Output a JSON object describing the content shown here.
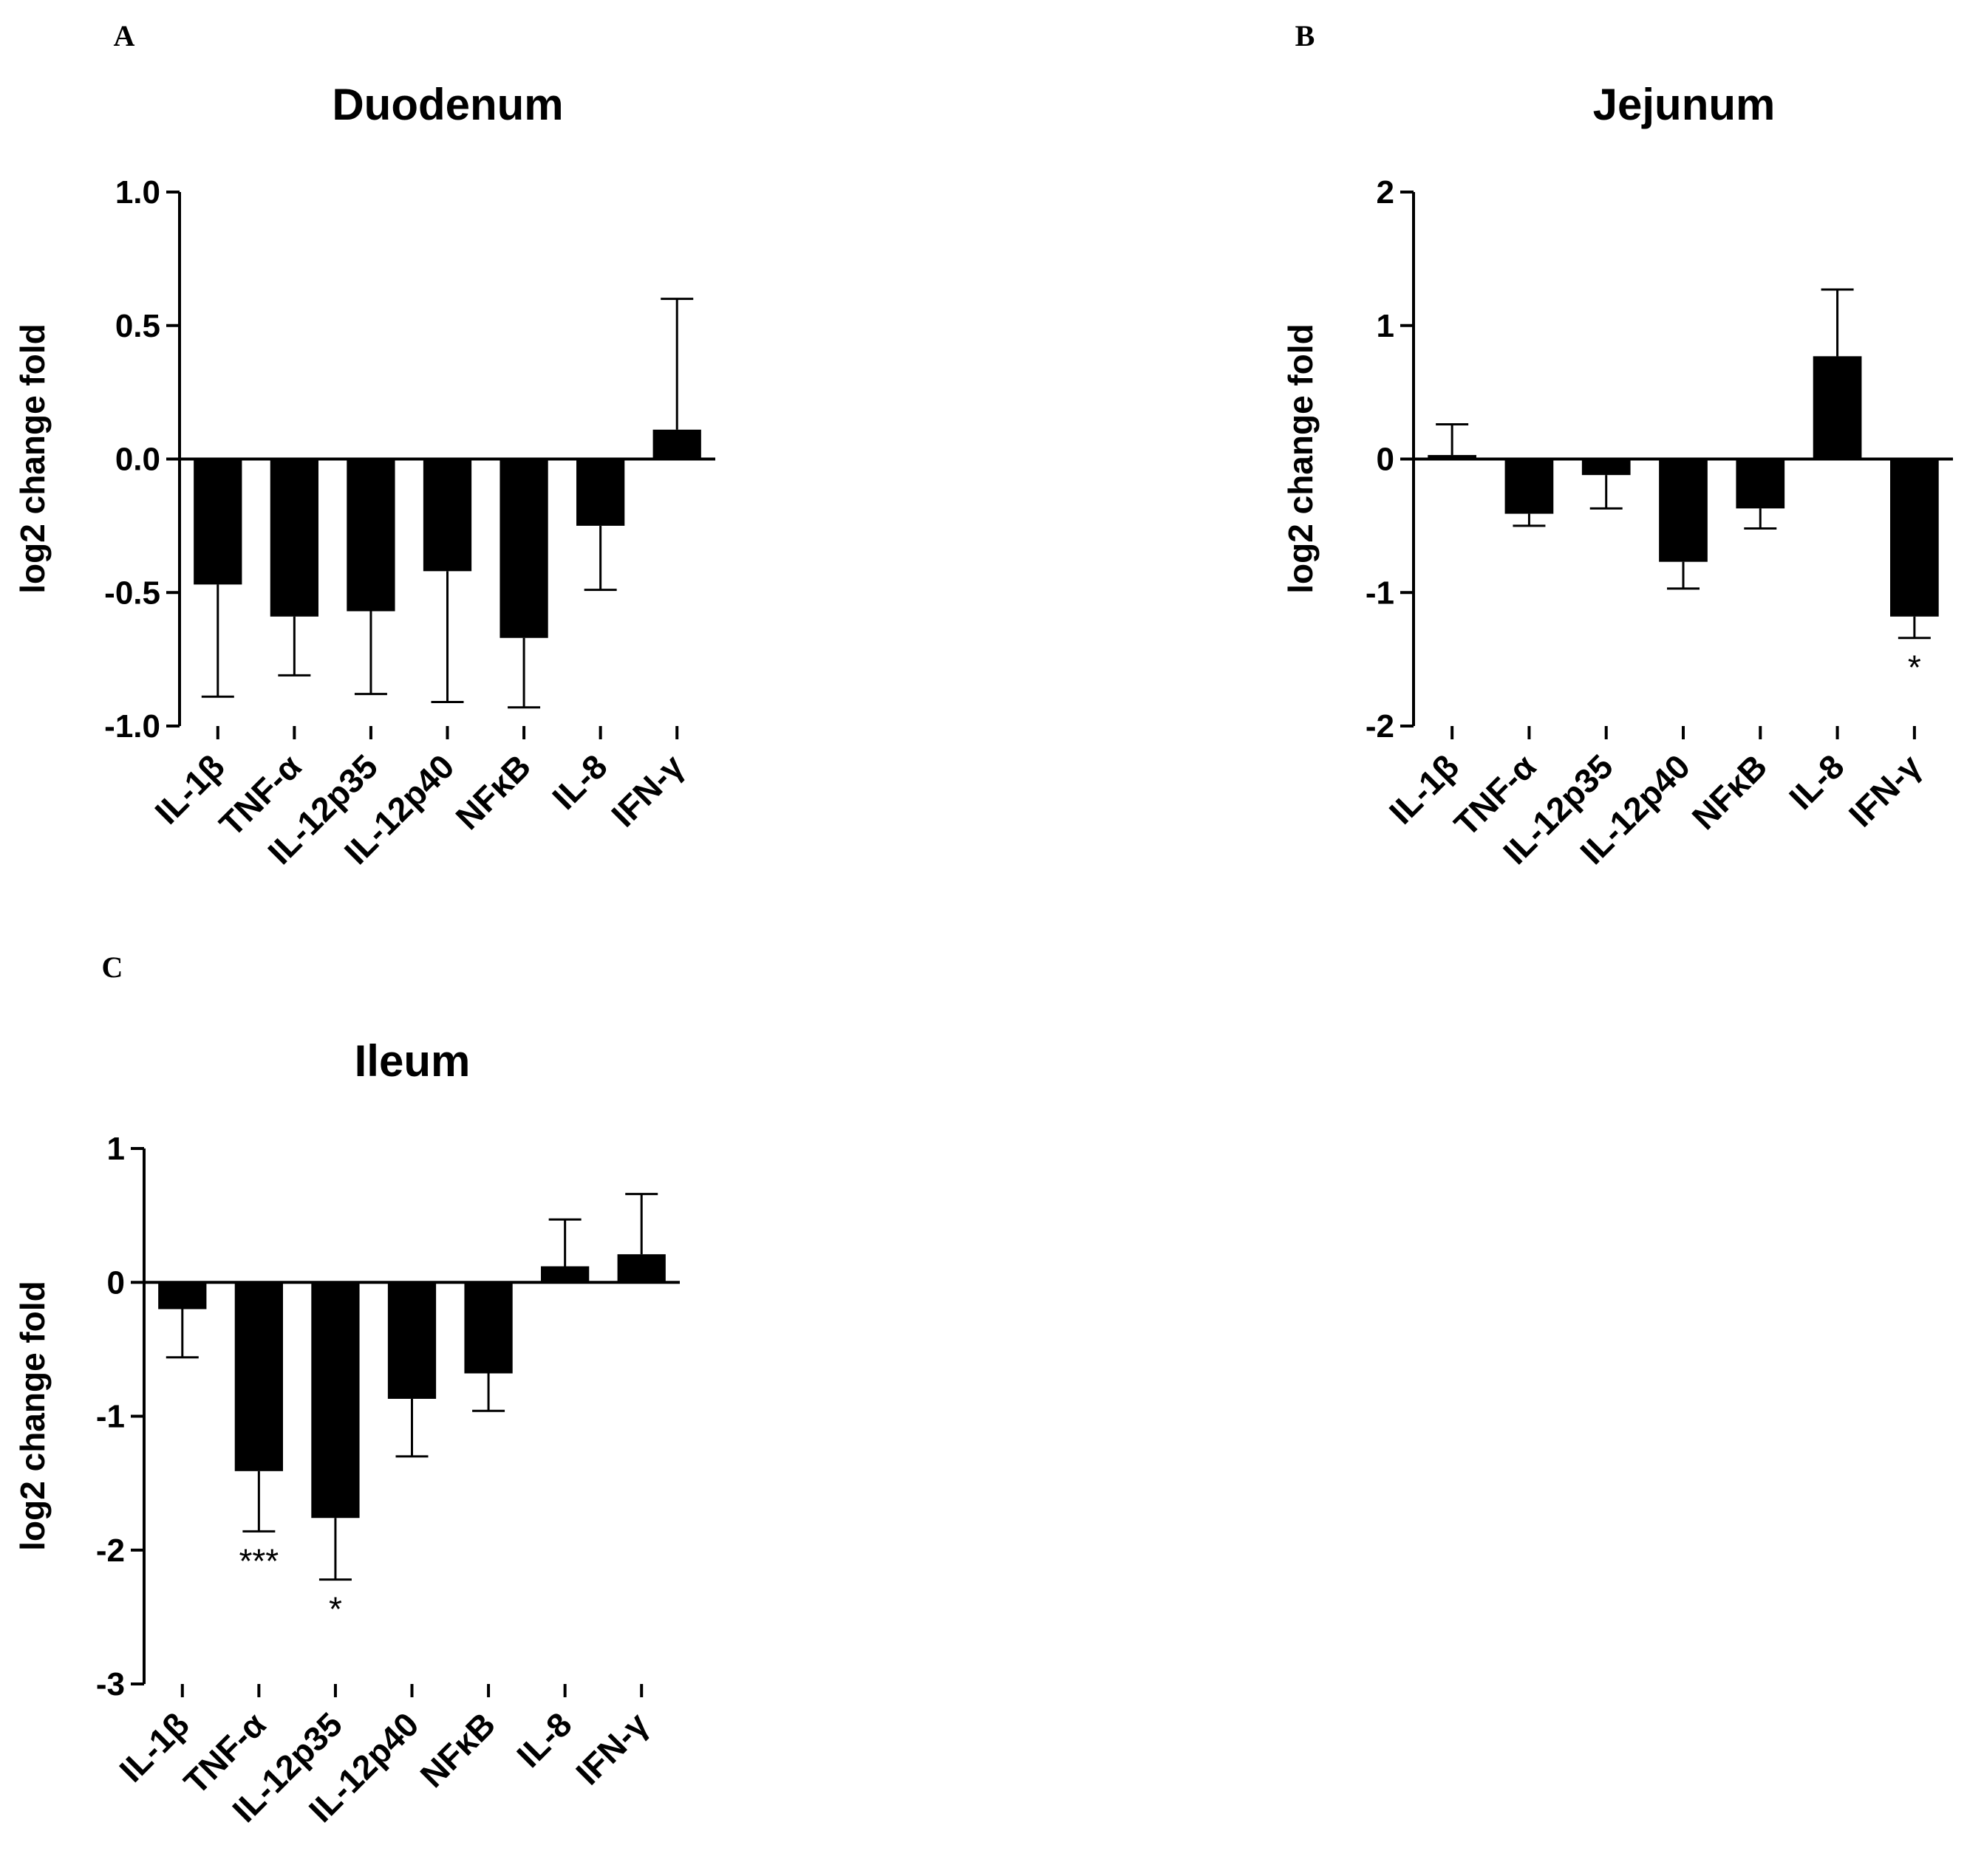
{
  "chart_data": [
    {
      "panel": "A",
      "type": "bar",
      "title": "Duodenum",
      "ylabel": "log2 change fold",
      "xlabel": "",
      "ylim": [
        -1.0,
        1.0
      ],
      "yticks": [
        -1.0,
        -0.5,
        0.0,
        0.5,
        1.0
      ],
      "ytick_labels": [
        "-1.0",
        "-0.5",
        "0.0",
        "0.5",
        "1.0"
      ],
      "categories": [
        "IL-1β",
        "TNF-α",
        "IL-12p35",
        "IL-12p40",
        "NFκB",
        "IL-8",
        "IFN-γ"
      ],
      "values": [
        -0.47,
        -0.59,
        -0.57,
        -0.42,
        -0.67,
        -0.25,
        0.11
      ],
      "errors": [
        0.42,
        0.22,
        0.31,
        0.49,
        0.26,
        0.24,
        0.49
      ],
      "significance": [
        "",
        "",
        "",
        "",
        "",
        "",
        ""
      ],
      "grid": false,
      "legend": "none",
      "bar_color": "#000000"
    },
    {
      "panel": "B",
      "type": "bar",
      "title": "Jejunum",
      "ylabel": "log2 change fold",
      "xlabel": "",
      "ylim": [
        -2,
        2
      ],
      "yticks": [
        -2,
        -1,
        0,
        1,
        2
      ],
      "ytick_labels": [
        "-2",
        "-1",
        "0",
        "1",
        "2"
      ],
      "categories": [
        "IL-1β",
        "TNF-α",
        "IL-12p35",
        "IL-12p40",
        "NFκB",
        "IL-8",
        "IFN-γ"
      ],
      "values": [
        0.03,
        -0.41,
        -0.12,
        -0.77,
        -0.37,
        0.77,
        -1.18
      ],
      "errors": [
        0.23,
        0.09,
        0.25,
        0.2,
        0.15,
        0.5,
        0.16
      ],
      "significance": [
        "",
        "",
        "",
        "",
        "",
        "",
        "*"
      ],
      "grid": false,
      "legend": "none",
      "bar_color": "#000000"
    },
    {
      "panel": "C",
      "type": "bar",
      "title": "Ileum",
      "ylabel": "log2 change fold",
      "xlabel": "",
      "ylim": [
        -3,
        1
      ],
      "yticks": [
        -3,
        -2,
        -1,
        0,
        1
      ],
      "ytick_labels": [
        "-3",
        "-2",
        "-1",
        "0",
        "1"
      ],
      "categories": [
        "IL-1β",
        "TNF-α",
        "IL-12p35",
        "IL-12p40",
        "NFκB",
        "IL-8",
        "IFN-γ"
      ],
      "values": [
        -0.2,
        -1.41,
        -1.76,
        -0.87,
        -0.68,
        0.12,
        0.21
      ],
      "errors": [
        0.36,
        0.45,
        0.46,
        0.43,
        0.28,
        0.35,
        0.45
      ],
      "significance": [
        "",
        "***",
        "*",
        "",
        "",
        "",
        ""
      ],
      "grid": false,
      "legend": "none",
      "bar_color": "#000000"
    }
  ]
}
